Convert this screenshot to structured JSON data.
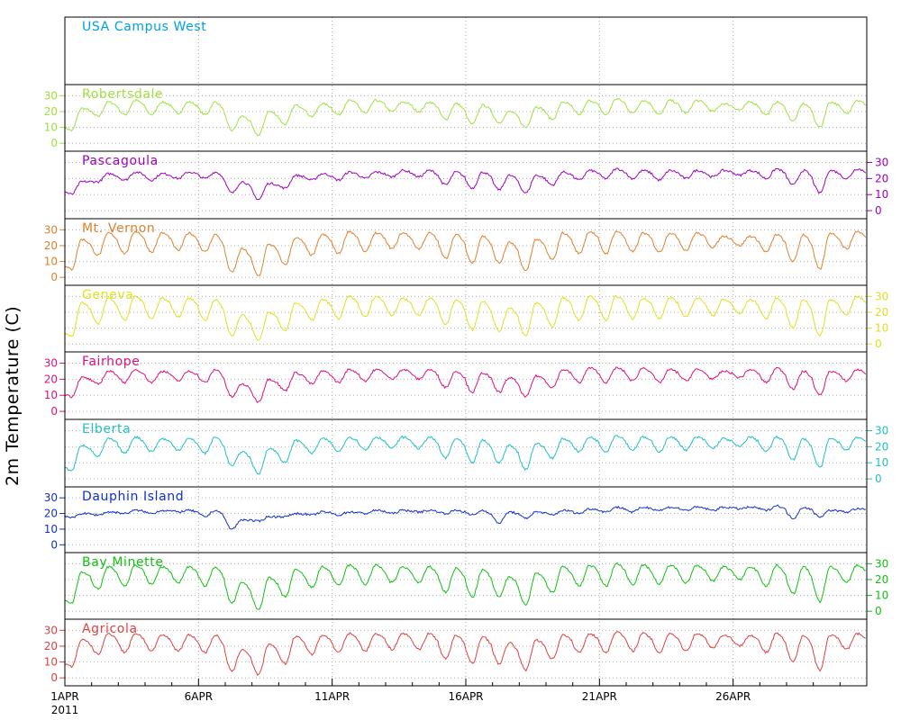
{
  "chart_data": {
    "type": "line",
    "ylabel": "2m Temperature (C)",
    "x_start": "2011-04-01",
    "x_end": "2011-04-30",
    "x_ticks": [
      "1APR",
      "6APR",
      "11APR",
      "16APR",
      "21APR",
      "26APR"
    ],
    "x_year": "2011",
    "ylim": [
      -5,
      37
    ],
    "yticks": [
      0,
      10,
      20,
      30
    ],
    "grid": true,
    "panels": [
      {
        "name": "USA Campus West",
        "color": "#00a0e0",
        "axis": "none",
        "values": []
      },
      {
        "name": "Robertsdale",
        "color": "#a0e040",
        "axis": "left",
        "daily_max": [
          22,
          26,
          27,
          26,
          26,
          26,
          17,
          20,
          24,
          25,
          27,
          27,
          26,
          26,
          25,
          24,
          20,
          23,
          26,
          27,
          28,
          27,
          27,
          27,
          25,
          26,
          26,
          25,
          26,
          27
        ],
        "daily_min": [
          8,
          17,
          18,
          18,
          19,
          18,
          8,
          5,
          12,
          17,
          18,
          19,
          20,
          20,
          15,
          12,
          13,
          10,
          15,
          18,
          18,
          19,
          18,
          19,
          20,
          21,
          18,
          14,
          10,
          19
        ]
      },
      {
        "name": "Pascagoula",
        "color": "#a000c0",
        "axis": "right",
        "daily_max": [
          18,
          23,
          24,
          23,
          24,
          24,
          18,
          17,
          22,
          23,
          24,
          24,
          25,
          25,
          24,
          24,
          22,
          22,
          24,
          25,
          26,
          25,
          25,
          25,
          25,
          25,
          26,
          25,
          25,
          26
        ],
        "daily_min": [
          10,
          18,
          19,
          19,
          20,
          20,
          11,
          7,
          14,
          19,
          19,
          20,
          21,
          21,
          16,
          14,
          13,
          11,
          16,
          19,
          20,
          20,
          19,
          20,
          21,
          22,
          20,
          16,
          11,
          20
        ]
      },
      {
        "name": "Mt. Vernon",
        "color": "#e08030",
        "axis": "left",
        "daily_max": [
          24,
          28,
          29,
          28,
          28,
          27,
          18,
          21,
          25,
          27,
          29,
          28,
          28,
          28,
          27,
          26,
          22,
          24,
          28,
          29,
          29,
          28,
          28,
          28,
          26,
          26,
          27,
          27,
          28,
          29
        ],
        "daily_min": [
          5,
          14,
          15,
          16,
          17,
          16,
          3,
          1,
          8,
          14,
          15,
          16,
          18,
          18,
          12,
          9,
          9,
          4,
          11,
          15,
          15,
          16,
          16,
          17,
          19,
          20,
          16,
          10,
          5,
          18
        ]
      },
      {
        "name": "Geneva",
        "color": "#e0e020",
        "axis": "right",
        "daily_max": [
          26,
          29,
          30,
          29,
          29,
          28,
          18,
          20,
          26,
          28,
          30,
          30,
          29,
          29,
          28,
          27,
          23,
          26,
          29,
          30,
          30,
          29,
          29,
          29,
          28,
          28,
          29,
          28,
          28,
          30
        ],
        "daily_min": [
          5,
          13,
          15,
          16,
          17,
          15,
          5,
          2,
          8,
          15,
          16,
          17,
          18,
          18,
          12,
          9,
          8,
          5,
          11,
          15,
          15,
          16,
          16,
          17,
          18,
          19,
          16,
          10,
          5,
          18
        ]
      },
      {
        "name": "Fairhope",
        "color": "#e0107a",
        "axis": "left",
        "daily_max": [
          21,
          25,
          26,
          25,
          25,
          26,
          17,
          20,
          24,
          25,
          26,
          26,
          26,
          26,
          25,
          24,
          21,
          22,
          26,
          27,
          27,
          27,
          26,
          26,
          25,
          26,
          27,
          25,
          25,
          26
        ],
        "daily_min": [
          9,
          17,
          18,
          18,
          19,
          18,
          9,
          6,
          13,
          17,
          18,
          19,
          20,
          20,
          15,
          12,
          12,
          9,
          15,
          18,
          18,
          19,
          18,
          19,
          20,
          21,
          18,
          14,
          10,
          19
        ]
      },
      {
        "name": "Elberta",
        "color": "#20c0c0",
        "axis": "right",
        "daily_max": [
          21,
          25,
          26,
          25,
          25,
          26,
          17,
          19,
          24,
          25,
          26,
          26,
          26,
          26,
          25,
          24,
          21,
          22,
          25,
          26,
          27,
          26,
          26,
          26,
          25,
          26,
          26,
          25,
          25,
          26
        ],
        "daily_min": [
          5,
          14,
          16,
          17,
          18,
          16,
          8,
          3,
          10,
          16,
          17,
          18,
          19,
          19,
          13,
          10,
          10,
          6,
          13,
          17,
          17,
          18,
          17,
          18,
          19,
          20,
          17,
          12,
          7,
          18
        ]
      },
      {
        "name": "Dauphin Island",
        "color": "#1030d0",
        "axis": "left",
        "daily_max": [
          20,
          21,
          22,
          22,
          22,
          22,
          16,
          18,
          20,
          21,
          21,
          22,
          22,
          22,
          22,
          22,
          21,
          21,
          22,
          23,
          24,
          24,
          24,
          24,
          24,
          24,
          25,
          24,
          22,
          23
        ],
        "daily_min": [
          17,
          19,
          20,
          20,
          21,
          18,
          10,
          15,
          18,
          19,
          19,
          20,
          20,
          21,
          20,
          19,
          14,
          17,
          19,
          20,
          21,
          21,
          22,
          22,
          22,
          23,
          22,
          17,
          18,
          21
        ]
      },
      {
        "name": "Bay Minette",
        "color": "#10c010",
        "axis": "right",
        "daily_max": [
          25,
          28,
          29,
          28,
          28,
          28,
          18,
          21,
          26,
          28,
          29,
          29,
          28,
          28,
          27,
          26,
          22,
          24,
          28,
          29,
          30,
          29,
          29,
          29,
          28,
          28,
          29,
          28,
          28,
          29
        ],
        "daily_min": [
          5,
          14,
          16,
          17,
          18,
          16,
          5,
          1,
          9,
          15,
          16,
          17,
          18,
          18,
          12,
          9,
          9,
          4,
          12,
          16,
          16,
          17,
          17,
          18,
          19,
          20,
          16,
          11,
          6,
          18
        ]
      },
      {
        "name": "Agricola",
        "color": "#e04040",
        "axis": "left",
        "daily_max": [
          24,
          28,
          28,
          27,
          27,
          27,
          18,
          21,
          26,
          27,
          28,
          28,
          28,
          28,
          27,
          26,
          22,
          24,
          27,
          28,
          29,
          28,
          28,
          28,
          27,
          27,
          28,
          27,
          27,
          28
        ],
        "daily_min": [
          7,
          15,
          16,
          17,
          17,
          16,
          4,
          2,
          9,
          15,
          16,
          17,
          18,
          18,
          12,
          9,
          9,
          5,
          12,
          16,
          16,
          17,
          16,
          17,
          19,
          20,
          16,
          10,
          5,
          18
        ]
      }
    ]
  }
}
